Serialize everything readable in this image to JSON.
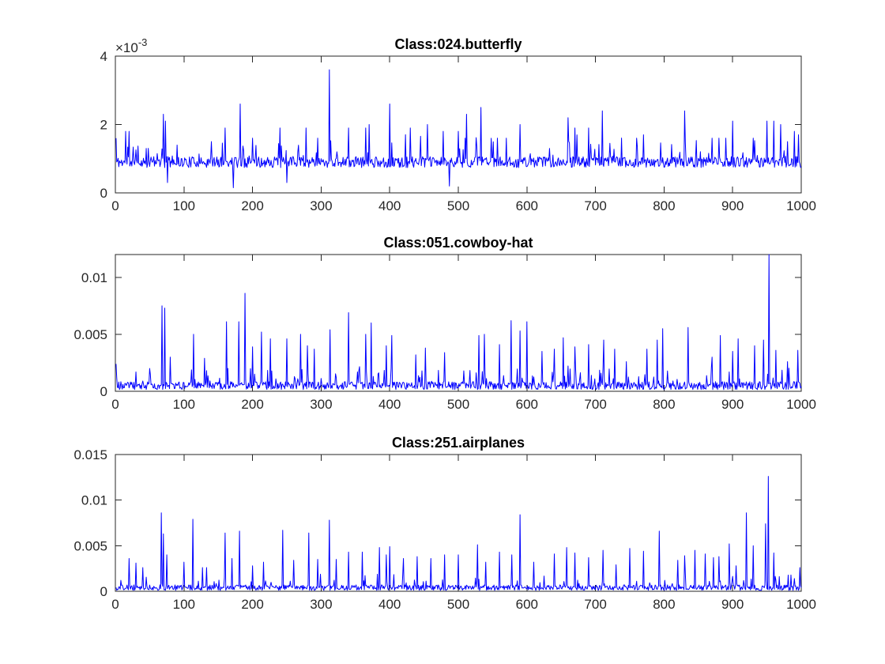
{
  "chart_data": [
    {
      "type": "line",
      "title": "Class:024.butterfly",
      "xlabel": "",
      "ylabel": "",
      "xlim": [
        0,
        1000
      ],
      "ylim": [
        0,
        0.004
      ],
      "y_exponent_label": "×10",
      "y_exponent_power": "-3",
      "xticks": [
        "0",
        "100",
        "200",
        "300",
        "400",
        "500",
        "600",
        "700",
        "800",
        "900",
        "1000"
      ],
      "yticks": [
        "0",
        "2",
        "4"
      ],
      "ytick_values": [
        0,
        0.002,
        0.004
      ],
      "line_color": "#0000ff",
      "base": 0.0009,
      "noise": 0.00032,
      "peaks": [
        [
          1,
          0.0016
        ],
        [
          15,
          0.0018
        ],
        [
          20,
          0.0018
        ],
        [
          45,
          0.0013
        ],
        [
          70,
          0.0023
        ],
        [
          73,
          0.0021
        ],
        [
          76,
          0.0003
        ],
        [
          90,
          0.0014
        ],
        [
          140,
          0.0015
        ],
        [
          160,
          0.0019
        ],
        [
          172,
          0.00015
        ],
        [
          182,
          0.0026
        ],
        [
          200,
          0.0016
        ],
        [
          240,
          0.0019
        ],
        [
          250,
          0.0003
        ],
        [
          278,
          0.0019
        ],
        [
          295,
          0.0016
        ],
        [
          312,
          0.0036
        ],
        [
          340,
          0.0019
        ],
        [
          365,
          0.0019
        ],
        [
          370,
          0.002
        ],
        [
          400,
          0.0026
        ],
        [
          430,
          0.0019
        ],
        [
          455,
          0.002
        ],
        [
          478,
          0.0018
        ],
        [
          487,
          0.0002
        ],
        [
          500,
          0.0018
        ],
        [
          510,
          0.0016
        ],
        [
          512,
          0.0023
        ],
        [
          533,
          0.0025
        ],
        [
          557,
          0.0016
        ],
        [
          570,
          0.0016
        ],
        [
          590,
          0.002
        ],
        [
          660,
          0.0022
        ],
        [
          670,
          0.0019
        ],
        [
          690,
          0.0019
        ],
        [
          710,
          0.0024
        ],
        [
          760,
          0.0016
        ],
        [
          770,
          0.0017
        ],
        [
          830,
          0.0024
        ],
        [
          870,
          0.0016
        ],
        [
          880,
          0.0016
        ],
        [
          890,
          0.0016
        ],
        [
          900,
          0.0021
        ],
        [
          930,
          0.0016
        ],
        [
          950,
          0.0021
        ],
        [
          960,
          0.0021
        ],
        [
          970,
          0.002
        ],
        [
          980,
          0.0015
        ],
        [
          990,
          0.0018
        ],
        [
          996,
          0.0017
        ]
      ],
      "seed": 11
    },
    {
      "type": "line",
      "title": "Class:051.cowboy-hat",
      "xlabel": "",
      "ylabel": "",
      "xlim": [
        0,
        1000
      ],
      "ylim": [
        0,
        0.012
      ],
      "xticks": [
        "0",
        "100",
        "200",
        "300",
        "400",
        "500",
        "600",
        "700",
        "800",
        "900",
        "1000"
      ],
      "yticks": [
        "0",
        "0.005",
        "0.01"
      ],
      "ytick_values": [
        0,
        0.005,
        0.01
      ],
      "line_color": "#0000ff",
      "base": 0.0005,
      "noise": 0.0007,
      "peaks": [
        [
          1,
          0.0024
        ],
        [
          30,
          0.0017
        ],
        [
          50,
          0.002
        ],
        [
          68,
          0.0075
        ],
        [
          72,
          0.0073
        ],
        [
          80,
          0.003
        ],
        [
          114,
          0.005
        ],
        [
          130,
          0.0029
        ],
        [
          162,
          0.0061
        ],
        [
          180,
          0.0061
        ],
        [
          189,
          0.0086
        ],
        [
          200,
          0.0039
        ],
        [
          213,
          0.0052
        ],
        [
          226,
          0.0046
        ],
        [
          250,
          0.0046
        ],
        [
          270,
          0.005
        ],
        [
          280,
          0.004
        ],
        [
          290,
          0.0037
        ],
        [
          313,
          0.0054
        ],
        [
          340,
          0.0069
        ],
        [
          365,
          0.005
        ],
        [
          373,
          0.006
        ],
        [
          395,
          0.004
        ],
        [
          403,
          0.0049
        ],
        [
          438,
          0.0032
        ],
        [
          452,
          0.0038
        ],
        [
          480,
          0.0034
        ],
        [
          530,
          0.0049
        ],
        [
          538,
          0.005
        ],
        [
          560,
          0.0041
        ],
        [
          577,
          0.0062
        ],
        [
          590,
          0.0053
        ],
        [
          600,
          0.0061
        ],
        [
          622,
          0.0035
        ],
        [
          640,
          0.0037
        ],
        [
          653,
          0.0047
        ],
        [
          670,
          0.0039
        ],
        [
          690,
          0.0041
        ],
        [
          712,
          0.0045
        ],
        [
          728,
          0.0037
        ],
        [
          745,
          0.0026
        ],
        [
          775,
          0.0037
        ],
        [
          790,
          0.0045
        ],
        [
          798,
          0.0055
        ],
        [
          835,
          0.0056
        ],
        [
          870,
          0.003
        ],
        [
          882,
          0.0049
        ],
        [
          900,
          0.0035
        ],
        [
          908,
          0.0046
        ],
        [
          932,
          0.004
        ],
        [
          945,
          0.0045
        ],
        [
          953,
          0.012
        ],
        [
          963,
          0.0036
        ],
        [
          980,
          0.0026
        ],
        [
          995,
          0.0036
        ]
      ],
      "seed": 23
    },
    {
      "type": "line",
      "title": "Class:251.airplanes",
      "xlabel": "",
      "ylabel": "",
      "xlim": [
        0,
        1000
      ],
      "ylim": [
        0,
        0.015
      ],
      "xticks": [
        "0",
        "100",
        "200",
        "300",
        "400",
        "500",
        "600",
        "700",
        "800",
        "900",
        "1000"
      ],
      "yticks": [
        "0",
        "0.005",
        "0.01",
        "0.015"
      ],
      "ytick_values": [
        0,
        0.005,
        0.01,
        0.015
      ],
      "line_color": "#0000ff",
      "base": 0.0004,
      "noise": 0.0006,
      "peaks": [
        [
          8,
          0.0012
        ],
        [
          20,
          0.0036
        ],
        [
          30,
          0.0031
        ],
        [
          40,
          0.0026
        ],
        [
          67,
          0.0086
        ],
        [
          70,
          0.0063
        ],
        [
          75,
          0.004
        ],
        [
          100,
          0.0032
        ],
        [
          113,
          0.0079
        ],
        [
          127,
          0.0026
        ],
        [
          133,
          0.0026
        ],
        [
          160,
          0.0064
        ],
        [
          170,
          0.0036
        ],
        [
          181,
          0.0066
        ],
        [
          200,
          0.0028
        ],
        [
          216,
          0.0032
        ],
        [
          244,
          0.0067
        ],
        [
          260,
          0.0034
        ],
        [
          282,
          0.0064
        ],
        [
          295,
          0.0035
        ],
        [
          312,
          0.0078
        ],
        [
          322,
          0.0035
        ],
        [
          340,
          0.0043
        ],
        [
          360,
          0.0043
        ],
        [
          385,
          0.0048
        ],
        [
          395,
          0.004
        ],
        [
          400,
          0.0049
        ],
        [
          420,
          0.0036
        ],
        [
          440,
          0.0038
        ],
        [
          460,
          0.0036
        ],
        [
          480,
          0.004
        ],
        [
          500,
          0.004
        ],
        [
          528,
          0.0051
        ],
        [
          540,
          0.0032
        ],
        [
          560,
          0.0043
        ],
        [
          578,
          0.004
        ],
        [
          590,
          0.0084
        ],
        [
          610,
          0.0032
        ],
        [
          640,
          0.0041
        ],
        [
          658,
          0.0048
        ],
        [
          670,
          0.0042
        ],
        [
          690,
          0.0037
        ],
        [
          711,
          0.0045
        ],
        [
          730,
          0.0029
        ],
        [
          750,
          0.0047
        ],
        [
          770,
          0.0044
        ],
        [
          793,
          0.0066
        ],
        [
          820,
          0.0034
        ],
        [
          830,
          0.0039
        ],
        [
          845,
          0.0045
        ],
        [
          860,
          0.0041
        ],
        [
          872,
          0.0037
        ],
        [
          880,
          0.0038
        ],
        [
          895,
          0.0052
        ],
        [
          905,
          0.0028
        ],
        [
          920,
          0.0086
        ],
        [
          930,
          0.005
        ],
        [
          948,
          0.0074
        ],
        [
          952,
          0.0126
        ],
        [
          960,
          0.0042
        ],
        [
          990,
          0.0014
        ],
        [
          998,
          0.0026
        ]
      ],
      "seed": 37
    }
  ]
}
